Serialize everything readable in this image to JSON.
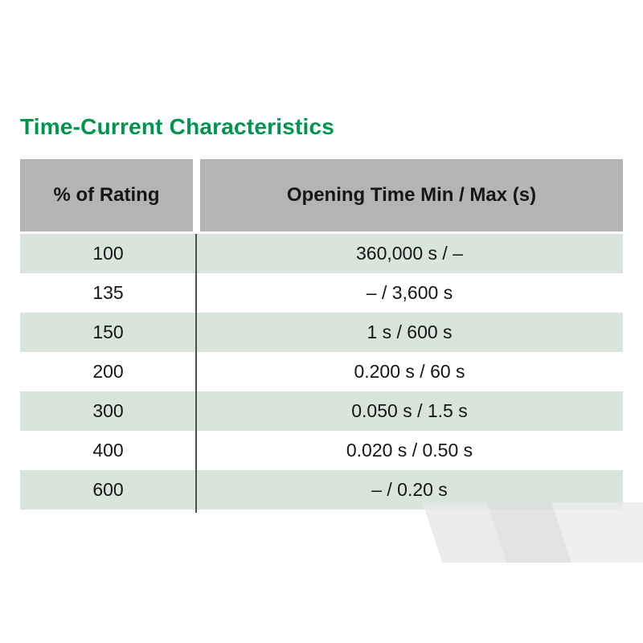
{
  "page": {
    "title": "Time-Current Characteristics"
  },
  "table": {
    "headers": [
      "% of Rating",
      "Opening Time Min / Max (s)"
    ],
    "rows": [
      {
        "rating": "100",
        "time": "360,000 s / –"
      },
      {
        "rating": "135",
        "time": "– / 3,600 s"
      },
      {
        "rating": "150",
        "time": "1 s / 600 s"
      },
      {
        "rating": "200",
        "time": "0.200 s / 60 s"
      },
      {
        "rating": "300",
        "time": "0.050 s / 1.5 s"
      },
      {
        "rating": "400",
        "time": "0.020 s / 0.50 s"
      },
      {
        "rating": "600",
        "time": "– / 0.20 s"
      }
    ]
  },
  "colors": {
    "title_green": "#00944d",
    "header_gray": "#b3b5b4",
    "row_green": "#d9e4dc",
    "divider_gray": "#4d4f4e"
  }
}
